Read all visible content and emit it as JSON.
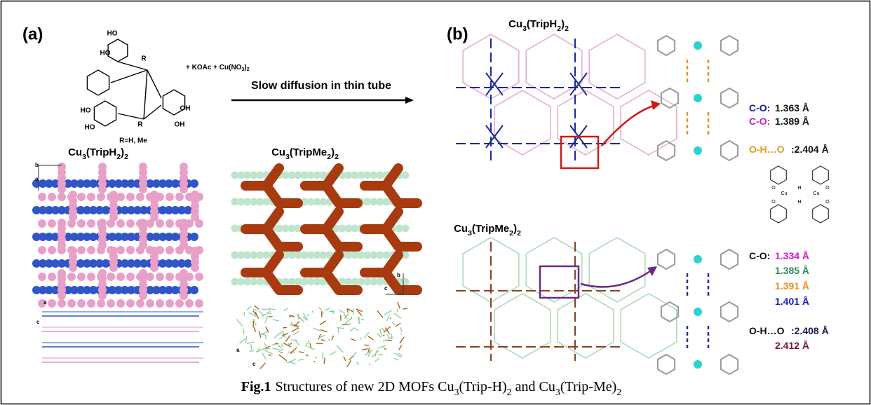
{
  "panel_a": {
    "label": "(a)",
    "reagents": [
      "+ KOAc + Cu(NO",
      "3",
      ")",
      "2"
    ],
    "arrow_label": "Slow diffusion in thin tube",
    "substituent": "R=H, Me",
    "molecule_labels": [
      "HO",
      "HO",
      "R",
      "HO",
      "HO",
      "R",
      "OH",
      "OH"
    ],
    "structure_left": {
      "title": [
        "Cu",
        "3",
        "(TripH",
        "2",
        ")",
        "2"
      ],
      "axes": [
        "b",
        "a",
        "a",
        "c"
      ]
    },
    "structure_right": {
      "title": [
        "Cu",
        "3",
        "(TripMe",
        "2",
        ")",
        "2"
      ],
      "axes": [
        "b",
        "c",
        "a",
        "c"
      ]
    }
  },
  "panel_b": {
    "label": "(b)",
    "top": {
      "title": [
        "Cu",
        "3",
        "(TripH",
        "2",
        ")",
        "2"
      ],
      "bonds": [
        {
          "label": "C-O:",
          "label_color": "#1a1a9c",
          "value": "1.363 Å",
          "value_color": "#111111"
        },
        {
          "label": "C-O:",
          "label_color": "#c020c0",
          "value": "1.389 Å",
          "value_color": "#111111"
        },
        {
          "label": "O-H…O",
          "label_color": "#e09a1a",
          "value": ":2.404 Å",
          "value_color": "#111111"
        }
      ],
      "dimer_labels": [
        "Cu",
        "Cu",
        "H",
        "H",
        "O",
        "O",
        "O",
        "O"
      ]
    },
    "bottom": {
      "title": [
        "Cu",
        "3",
        "(TripMe",
        "2",
        ")",
        "2"
      ],
      "bonds": [
        {
          "label": "C-O:",
          "label_color": "#111111",
          "value": "1.334 Å",
          "value_color": "#d01ad0"
        },
        {
          "label": "",
          "label_color": "#111111",
          "value": "1.385 Å",
          "value_color": "#2a8a5a"
        },
        {
          "label": "",
          "label_color": "#111111",
          "value": "1.391 Å",
          "value_color": "#e0901a"
        },
        {
          "label": "",
          "label_color": "#111111",
          "value": "1.401 Å",
          "value_color": "#1a1aa8"
        },
        {
          "label": "O-H…O",
          "label_color": "#111111",
          "value": ":2.408 Å",
          "value_color": "#1a1a50"
        },
        {
          "label": "",
          "label_color": "#111111",
          "value": "2.412 Å",
          "value_color": "#6a1a3a"
        }
      ]
    }
  },
  "caption": {
    "label": "Fig.1",
    "text": [
      "Structures of new 2D MOFs Cu",
      "3",
      "(Trip-H)",
      "2",
      " and Cu",
      "3",
      "(Trip-Me)",
      "2"
    ]
  }
}
